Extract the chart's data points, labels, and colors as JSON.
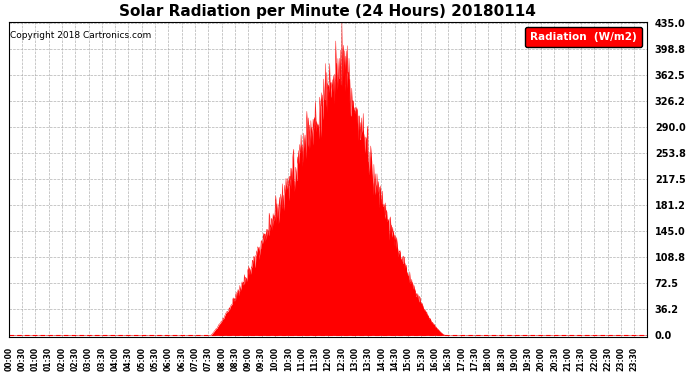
{
  "title": "Solar Radiation per Minute (24 Hours) 20180114",
  "copyright_text": "Copyright 2018 Cartronics.com",
  "legend_label": "Radiation  (W/m2)",
  "fill_color": "#FF0000",
  "line_color": "#FF0000",
  "background_color": "#FFFFFF",
  "grid_color": "#AAAAAA",
  "ytick_labels": [
    "0.0",
    "36.2",
    "72.5",
    "108.8",
    "145.0",
    "181.2",
    "217.5",
    "253.8",
    "290.0",
    "326.2",
    "362.5",
    "398.8",
    "435.0"
  ],
  "ytick_values": [
    0.0,
    36.2,
    72.5,
    108.8,
    145.0,
    181.2,
    217.5,
    253.8,
    290.0,
    326.2,
    362.5,
    398.8,
    435.0
  ],
  "ylim_max": 435.0,
  "xtick_step_minutes": 30,
  "total_minutes": 1440,
  "sunrise_minute": 455,
  "sunset_minute": 985,
  "peak_minute": 750,
  "peak_value": 435.0,
  "figwidth": 6.9,
  "figheight": 3.75,
  "dpi": 100
}
